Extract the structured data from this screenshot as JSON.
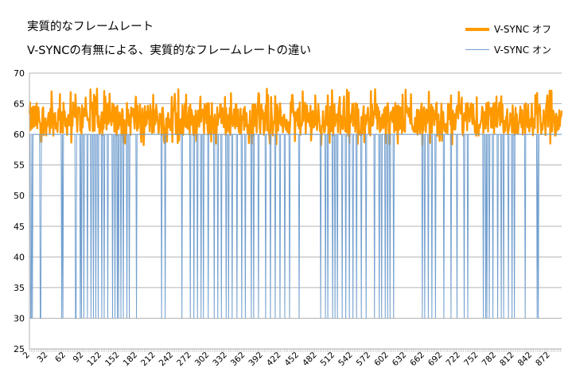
{
  "chart_data": {
    "type": "line",
    "title": "実質的なフレームレート",
    "subtitle": "V-SYNCの有無による、実質的なフレームレートの違い",
    "xlabel": "",
    "ylabel": "",
    "x_start": 1,
    "x_end": 891,
    "ylim": [
      25,
      70
    ],
    "yticks": [
      25,
      30,
      35,
      40,
      45,
      50,
      55,
      60,
      65,
      70
    ],
    "xtick_labels": [
      "2",
      "32",
      "62",
      "92",
      "122",
      "152",
      "182",
      "212",
      "242",
      "272",
      "302",
      "332",
      "362",
      "392",
      "422",
      "452",
      "482",
      "512",
      "542",
      "572",
      "602",
      "632",
      "662",
      "692",
      "722",
      "752",
      "782",
      "812",
      "842",
      "872"
    ],
    "grid": true,
    "legend_position": "top-right",
    "series": [
      {
        "name": "V-SYNC オフ",
        "color": "#ff9900",
        "baseline": 62.5,
        "typical_range": [
          59,
          67.5
        ],
        "notes": "Fluctuates roughly between 58 and 67.5 fps across all frames"
      },
      {
        "name": "V-SYNC オン",
        "color": "#729fcf",
        "baseline": 60,
        "drop_value": 30,
        "drop_frames": [
          3,
          4,
          6,
          19,
          20,
          55,
          57,
          78,
          79,
          86,
          88,
          92,
          98,
          104,
          108,
          112,
          116,
          122,
          126,
          132,
          140,
          144,
          148,
          150,
          154,
          158,
          164,
          168,
          180,
          222,
          228,
          256,
          270,
          276,
          282,
          288,
          292,
          300,
          310,
          316,
          322,
          330,
          334,
          340,
          348,
          356,
          362,
          372,
          376,
          384,
          396,
          404,
          412,
          420,
          428,
          436,
          452,
          488,
          496,
          500,
          508,
          512,
          516,
          524,
          530,
          536,
          542,
          548,
          556,
          564,
          578,
          586,
          590,
          596,
          600,
          604,
          610,
          658,
          662,
          668,
          674,
          680,
          694,
          706,
          716,
          728,
          734,
          760,
          764,
          766,
          770,
          776,
          784,
          790,
          794,
          802,
          808,
          812,
          830,
          850,
          852
        ],
        "notes": "Holds at 60 fps, with intermittent sudden drops to 30 fps"
      }
    ]
  }
}
